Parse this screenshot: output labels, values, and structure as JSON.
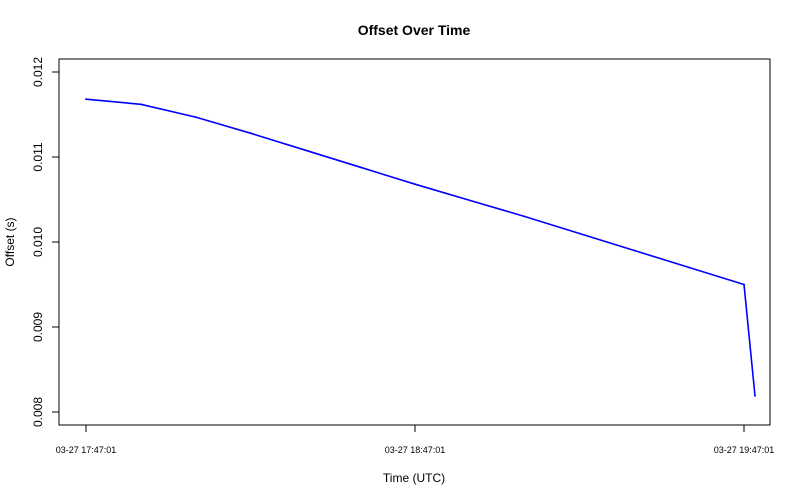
{
  "chart_data": {
    "type": "line",
    "title": "Offset Over Time",
    "xlabel": "Time (UTC)",
    "ylabel": "Offset (s)",
    "x_ticks": [
      "03-27 17:47:01",
      "03-27 18:47:01",
      "03-27 19:47:01"
    ],
    "y_ticks": [
      "0.008",
      "0.009",
      "0.010",
      "0.011",
      "0.012"
    ],
    "xlim": [
      "03-27 17:47:01",
      "03-27 19:47:01"
    ],
    "ylim": [
      0.008,
      0.012
    ],
    "grid": false,
    "legend": "none",
    "series": [
      {
        "color": "#0000ff",
        "x": [
          "03-27 17:47:01",
          "03-27 17:57:01",
          "03-27 18:07:01",
          "03-27 18:17:01",
          "03-27 18:27:01",
          "03-27 18:37:01",
          "03-27 18:47:01",
          "03-27 18:57:01",
          "03-27 19:07:01",
          "03-27 19:17:01",
          "03-27 19:27:01",
          "03-27 19:37:01",
          "03-27 19:47:01",
          "03-27 19:49:01"
        ],
        "values": [
          0.01168,
          0.01162,
          0.01147,
          0.01128,
          0.01108,
          0.01088,
          0.01068,
          0.01049,
          0.0103,
          0.0101,
          0.0099,
          0.0097,
          0.0095,
          0.00819
        ]
      }
    ]
  }
}
